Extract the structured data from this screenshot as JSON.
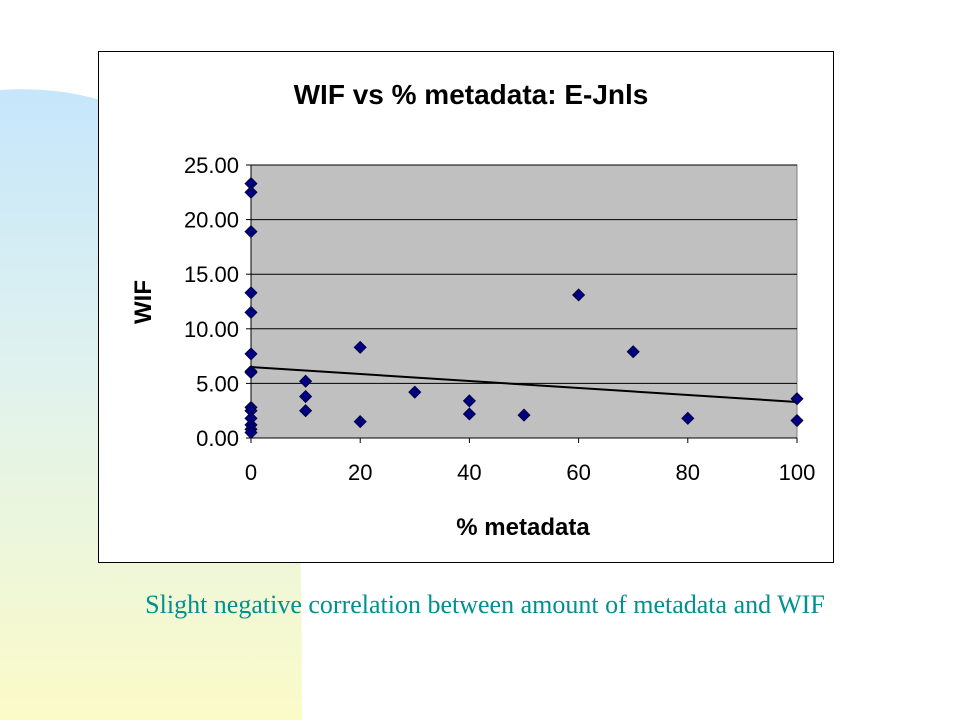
{
  "chart_data": {
    "type": "scatter",
    "title": "WIF vs % metadata: E-Jnls",
    "xlabel": "% metadata",
    "ylabel": "WIF",
    "xlim": [
      0,
      100
    ],
    "ylim": [
      0,
      25
    ],
    "xticks": [
      "0",
      "20",
      "40",
      "60",
      "80",
      "100"
    ],
    "yticks": [
      "0.00",
      "5.00",
      "10.00",
      "15.00",
      "20.00",
      "25.00"
    ],
    "grid": true,
    "legend": "none",
    "points": [
      {
        "x": 0,
        "y": 23.3
      },
      {
        "x": 0,
        "y": 22.5
      },
      {
        "x": 0,
        "y": 18.9
      },
      {
        "x": 0,
        "y": 13.3
      },
      {
        "x": 0,
        "y": 11.5
      },
      {
        "x": 0,
        "y": 7.7
      },
      {
        "x": 0,
        "y": 6.1
      },
      {
        "x": 0,
        "y": 6.0
      },
      {
        "x": 0,
        "y": 2.8
      },
      {
        "x": 0,
        "y": 2.5
      },
      {
        "x": 0,
        "y": 1.8
      },
      {
        "x": 0,
        "y": 1.2
      },
      {
        "x": 0,
        "y": 0.8
      },
      {
        "x": 0,
        "y": 0.5
      },
      {
        "x": 10,
        "y": 5.2
      },
      {
        "x": 10,
        "y": 3.8
      },
      {
        "x": 10,
        "y": 2.5
      },
      {
        "x": 20,
        "y": 8.3
      },
      {
        "x": 20,
        "y": 1.5
      },
      {
        "x": 30,
        "y": 4.2
      },
      {
        "x": 40,
        "y": 3.4
      },
      {
        "x": 40,
        "y": 2.2
      },
      {
        "x": 50,
        "y": 2.1
      },
      {
        "x": 60,
        "y": 13.1
      },
      {
        "x": 70,
        "y": 7.9
      },
      {
        "x": 80,
        "y": 1.8
      },
      {
        "x": 100,
        "y": 3.6
      },
      {
        "x": 100,
        "y": 1.6
      }
    ],
    "trendline": {
      "x": [
        0,
        100
      ],
      "y": [
        6.5,
        3.3
      ]
    },
    "colors": {
      "plot_bg": "#c0c0c0",
      "marker": "#000080",
      "trendline": "#000000"
    }
  },
  "caption": "Slight negative correlation between amount of metadata and WIF"
}
